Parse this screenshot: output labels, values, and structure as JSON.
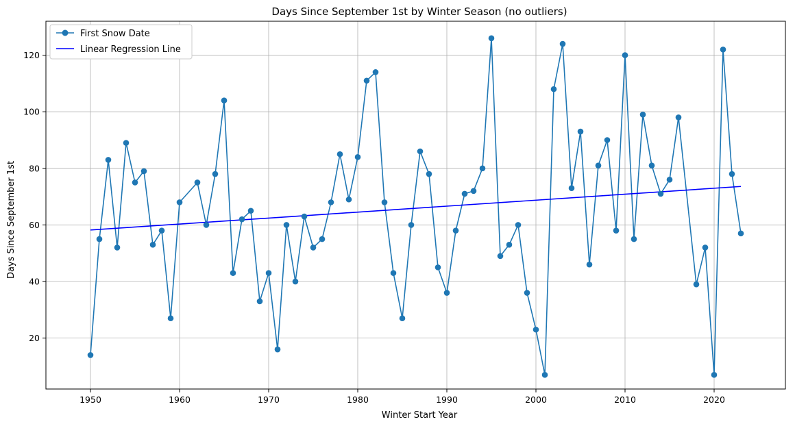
{
  "chart_data": {
    "type": "line",
    "title": "Days Since September 1st by Winter Season (no outliers)",
    "xlabel": "Winter Start Year",
    "ylabel": "Days Since September 1st",
    "xlim": [
      1945,
      2028
    ],
    "ylim": [
      2,
      132
    ],
    "xticks": [
      1950,
      1960,
      1970,
      1980,
      1990,
      2000,
      2010,
      2020
    ],
    "yticks": [
      20,
      40,
      60,
      80,
      100,
      120
    ],
    "grid": true,
    "legend_position": "top-left",
    "series": [
      {
        "name": "First Snow Date",
        "kind": "line-marker",
        "color": "#1f77b4",
        "x": [
          1950,
          1951,
          1952,
          1953,
          1954,
          1955,
          1956,
          1957,
          1958,
          1959,
          1960,
          1962,
          1963,
          1964,
          1965,
          1966,
          1967,
          1968,
          1969,
          1970,
          1971,
          1972,
          1973,
          1974,
          1975,
          1976,
          1977,
          1978,
          1979,
          1980,
          1981,
          1982,
          1983,
          1984,
          1985,
          1986,
          1987,
          1988,
          1989,
          1990,
          1991,
          1992,
          1993,
          1994,
          1995,
          1996,
          1997,
          1998,
          1999,
          2000,
          2001,
          2002,
          2003,
          2004,
          2005,
          2006,
          2007,
          2008,
          2009,
          2010,
          2011,
          2012,
          2013,
          2014,
          2015,
          2016,
          2018,
          2019,
          2020,
          2021,
          2022,
          2023
        ],
        "y": [
          14,
          55,
          83,
          52,
          89,
          75,
          79,
          53,
          58,
          27,
          68,
          75,
          60,
          78,
          104,
          43,
          62,
          65,
          33,
          43,
          16,
          60,
          40,
          63,
          52,
          55,
          68,
          85,
          69,
          84,
          111,
          114,
          68,
          43,
          27,
          60,
          86,
          78,
          45,
          36,
          58,
          71,
          72,
          80,
          126,
          49,
          53,
          60,
          36,
          23,
          7,
          108,
          124,
          73,
          93,
          46,
          81,
          90,
          58,
          120,
          55,
          99,
          81,
          71,
          76,
          98,
          39,
          52,
          7,
          122,
          78,
          57
        ]
      },
      {
        "name": "Linear Regression Line",
        "kind": "line",
        "color": "#0000ff",
        "x": [
          1950,
          2023
        ],
        "y": [
          58.2,
          73.6
        ]
      }
    ]
  }
}
